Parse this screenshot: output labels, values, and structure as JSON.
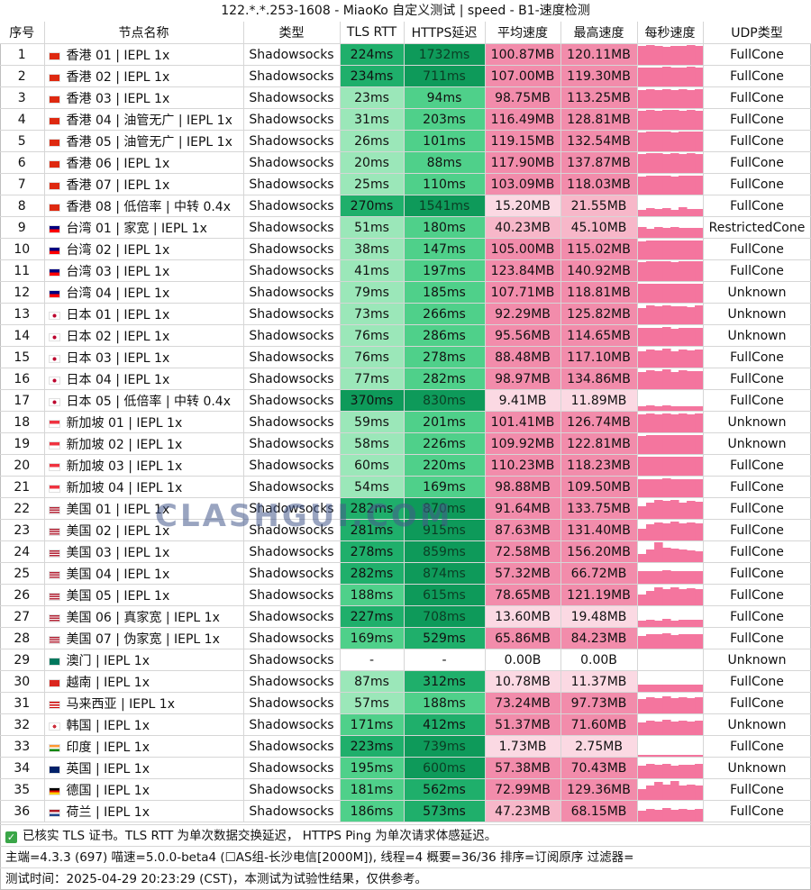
{
  "title": "122.*.*.253-1608 - MiaoKo 自定义测试 | speed - B1-速度检测",
  "headers": [
    "序号",
    "节点名称",
    "类型",
    "TLS RTT",
    "HTTPS延迟",
    "平均速度",
    "最高速度",
    "每秒速度",
    "UDP类型"
  ],
  "colors": {
    "rtt_fast": "#9be7b9",
    "rtt_mid": "#4fd08a",
    "rtt_slow": "#1faf6b",
    "rtt_bad": "#0e9a5a",
    "speed_fast": "#f28cab",
    "speed_mid": "#f7b7c9",
    "speed_low": "#fbd9e3",
    "speed_none": "#ffffff",
    "spark": "#f4759e"
  },
  "rows": [
    {
      "n": "1",
      "flag": "hk",
      "name": "香港 01 | IEPL 1x",
      "type": "Shadowsocks",
      "tls": "224ms",
      "https": "1732ms",
      "avg": "100.87MB",
      "max": "120.11MB",
      "udp": "FullCone",
      "tlsv": 224,
      "httpsv": 1732,
      "avgv": 100.87,
      "maxv": 120.11,
      "spark": [
        0.9,
        0.95,
        0.92,
        0.88,
        0.93,
        0.9,
        0.96,
        0.91
      ]
    },
    {
      "n": "2",
      "flag": "hk",
      "name": "香港 02 | IEPL 1x",
      "type": "Shadowsocks",
      "tls": "234ms",
      "https": "711ms",
      "avg": "107.00MB",
      "max": "119.30MB",
      "udp": "FullCone",
      "tlsv": 234,
      "httpsv": 711,
      "avgv": 107.0,
      "maxv": 119.3,
      "spark": [
        0.9,
        0.93,
        0.9,
        0.95,
        0.92,
        0.9,
        0.94,
        0.91
      ]
    },
    {
      "n": "3",
      "flag": "hk",
      "name": "香港 03 | IEPL 1x",
      "type": "Shadowsocks",
      "tls": "23ms",
      "https": "94ms",
      "avg": "98.75MB",
      "max": "113.25MB",
      "udp": "FullCone",
      "tlsv": 23,
      "httpsv": 94,
      "avgv": 98.75,
      "maxv": 113.25,
      "spark": [
        0.85,
        0.9,
        0.88,
        0.92,
        0.86,
        0.9,
        0.88,
        0.9
      ]
    },
    {
      "n": "4",
      "flag": "hk",
      "name": "香港 04 | 油管无广 | IEPL 1x",
      "type": "Shadowsocks",
      "tls": "31ms",
      "https": "203ms",
      "avg": "116.49MB",
      "max": "128.81MB",
      "udp": "FullCone",
      "tlsv": 31,
      "httpsv": 203,
      "avgv": 116.49,
      "maxv": 128.81,
      "spark": [
        0.92,
        0.95,
        0.93,
        0.96,
        0.94,
        0.92,
        0.95,
        0.93
      ]
    },
    {
      "n": "5",
      "flag": "hk",
      "name": "香港 05 | 油管无广 | IEPL 1x",
      "type": "Shadowsocks",
      "tls": "26ms",
      "https": "101ms",
      "avg": "119.15MB",
      "max": "132.54MB",
      "udp": "FullCone",
      "tlsv": 26,
      "httpsv": 101,
      "avgv": 119.15,
      "maxv": 132.54,
      "spark": [
        0.93,
        0.95,
        0.94,
        0.96,
        0.93,
        0.95,
        0.94,
        0.95
      ]
    },
    {
      "n": "6",
      "flag": "hk",
      "name": "香港 06 | IEPL 1x",
      "type": "Shadowsocks",
      "tls": "20ms",
      "https": "88ms",
      "avg": "117.90MB",
      "max": "137.87MB",
      "udp": "FullCone",
      "tlsv": 20,
      "httpsv": 88,
      "avgv": 117.9,
      "maxv": 137.87,
      "spark": [
        0.9,
        0.94,
        0.96,
        0.92,
        0.95,
        0.93,
        0.94,
        0.92
      ]
    },
    {
      "n": "7",
      "flag": "hk",
      "name": "香港 07 | IEPL 1x",
      "type": "Shadowsocks",
      "tls": "25ms",
      "https": "110ms",
      "avg": "103.09MB",
      "max": "118.03MB",
      "udp": "FullCone",
      "tlsv": 25,
      "httpsv": 110,
      "avgv": 103.09,
      "maxv": 118.03,
      "spark": [
        0.88,
        0.92,
        0.9,
        0.93,
        0.89,
        0.91,
        0.9,
        0.92
      ]
    },
    {
      "n": "8",
      "flag": "hk",
      "name": "香港 08 | 低倍率 | 中转 0.4x",
      "type": "Shadowsocks",
      "tls": "270ms",
      "https": "1541ms",
      "avg": "15.20MB",
      "max": "21.55MB",
      "udp": "FullCone",
      "tlsv": 270,
      "httpsv": 1541,
      "avgv": 15.2,
      "maxv": 21.55,
      "spark": [
        0.3,
        0.4,
        0.35,
        0.38,
        0.3,
        0.42,
        0.36,
        0.33
      ]
    },
    {
      "n": "9",
      "flag": "tw",
      "name": "台湾 01 | 家宽 | IEPL 1x",
      "type": "Shadowsocks",
      "tls": "51ms",
      "https": "180ms",
      "avg": "40.23MB",
      "max": "45.10MB",
      "udp": "RestrictedCone",
      "tlsv": 51,
      "httpsv": 180,
      "avgv": 40.23,
      "maxv": 45.1,
      "spark": [
        0.5,
        0.45,
        0.5,
        0.48,
        0.5,
        0.46,
        0.49,
        0.47
      ]
    },
    {
      "n": "10",
      "flag": "tw",
      "name": "台湾 02 | IEPL 1x",
      "type": "Shadowsocks",
      "tls": "38ms",
      "https": "147ms",
      "avg": "105.00MB",
      "max": "115.02MB",
      "udp": "FullCone",
      "tlsv": 38,
      "httpsv": 147,
      "avgv": 105.0,
      "maxv": 115.02,
      "spark": [
        0.88,
        0.92,
        0.9,
        0.93,
        0.91,
        0.9,
        0.92,
        0.9
      ]
    },
    {
      "n": "11",
      "flag": "tw",
      "name": "台湾 03 | IEPL 1x",
      "type": "Shadowsocks",
      "tls": "41ms",
      "https": "197ms",
      "avg": "123.84MB",
      "max": "140.92MB",
      "udp": "FullCone",
      "tlsv": 41,
      "httpsv": 197,
      "avgv": 123.84,
      "maxv": 140.92,
      "spark": [
        0.92,
        0.96,
        0.94,
        0.95,
        0.93,
        0.96,
        0.94,
        0.95
      ]
    },
    {
      "n": "12",
      "flag": "tw",
      "name": "台湾 04 | IEPL 1x",
      "type": "Shadowsocks",
      "tls": "79ms",
      "https": "185ms",
      "avg": "107.71MB",
      "max": "118.81MB",
      "udp": "Unknown",
      "tlsv": 79,
      "httpsv": 185,
      "avgv": 107.71,
      "maxv": 118.81,
      "spark": [
        0.9,
        0.92,
        0.91,
        0.93,
        0.9,
        0.92,
        0.91,
        0.93
      ]
    },
    {
      "n": "13",
      "flag": "jp",
      "name": "日本 01 | IEPL 1x",
      "type": "Shadowsocks",
      "tls": "73ms",
      "https": "266ms",
      "avg": "92.29MB",
      "max": "125.82MB",
      "udp": "Unknown",
      "tlsv": 73,
      "httpsv": 266,
      "avgv": 92.29,
      "maxv": 125.82,
      "spark": [
        0.8,
        0.9,
        0.85,
        0.92,
        0.86,
        0.88,
        0.84,
        0.9
      ]
    },
    {
      "n": "14",
      "flag": "jp",
      "name": "日本 02 | IEPL 1x",
      "type": "Shadowsocks",
      "tls": "76ms",
      "https": "286ms",
      "avg": "95.56MB",
      "max": "114.65MB",
      "udp": "Unknown",
      "tlsv": 76,
      "httpsv": 286,
      "avgv": 95.56,
      "maxv": 114.65,
      "spark": [
        0.85,
        0.88,
        0.86,
        0.9,
        0.84,
        0.89,
        0.87,
        0.88
      ]
    },
    {
      "n": "15",
      "flag": "jp",
      "name": "日本 03 | IEPL 1x",
      "type": "Shadowsocks",
      "tls": "76ms",
      "https": "278ms",
      "avg": "88.48MB",
      "max": "117.10MB",
      "udp": "FullCone",
      "tlsv": 76,
      "httpsv": 278,
      "avgv": 88.48,
      "maxv": 117.1,
      "spark": [
        0.78,
        0.86,
        0.82,
        0.9,
        0.8,
        0.85,
        0.83,
        0.86
      ]
    },
    {
      "n": "16",
      "flag": "jp",
      "name": "日本 04 | IEPL 1x",
      "type": "Shadowsocks",
      "tls": "77ms",
      "https": "282ms",
      "avg": "98.97MB",
      "max": "134.86MB",
      "udp": "FullCone",
      "tlsv": 77,
      "httpsv": 282,
      "avgv": 98.97,
      "maxv": 134.86,
      "spark": [
        0.82,
        0.92,
        0.86,
        0.94,
        0.84,
        0.9,
        0.85,
        0.88
      ]
    },
    {
      "n": "17",
      "flag": "jp",
      "name": "日本 05 | 低倍率 | 中转 0.4x",
      "type": "Shadowsocks",
      "tls": "370ms",
      "https": "830ms",
      "avg": "9.41MB",
      "max": "11.89MB",
      "udp": "FullCone",
      "tlsv": 370,
      "httpsv": 830,
      "avgv": 9.41,
      "maxv": 11.89,
      "spark": [
        0.2,
        0.25,
        0.22,
        0.24,
        0.2,
        0.23,
        0.21,
        0.22
      ]
    },
    {
      "n": "18",
      "flag": "sg",
      "name": "新加坡 01 | IEPL 1x",
      "type": "Shadowsocks",
      "tls": "59ms",
      "https": "201ms",
      "avg": "101.41MB",
      "max": "126.74MB",
      "udp": "Unknown",
      "tlsv": 59,
      "httpsv": 201,
      "avgv": 101.41,
      "maxv": 126.74,
      "spark": [
        0.85,
        0.9,
        0.88,
        0.93,
        0.86,
        0.9,
        0.88,
        0.91
      ]
    },
    {
      "n": "19",
      "flag": "sg",
      "name": "新加坡 02 | IEPL 1x",
      "type": "Shadowsocks",
      "tls": "58ms",
      "https": "226ms",
      "avg": "109.92MB",
      "max": "122.81MB",
      "udp": "Unknown",
      "tlsv": 58,
      "httpsv": 226,
      "avgv": 109.92,
      "maxv": 122.81,
      "spark": [
        0.88,
        0.92,
        0.9,
        0.93,
        0.9,
        0.92,
        0.91,
        0.92
      ]
    },
    {
      "n": "20",
      "flag": "sg",
      "name": "新加坡 03 | IEPL 1x",
      "type": "Shadowsocks",
      "tls": "60ms",
      "https": "220ms",
      "avg": "110.23MB",
      "max": "118.23MB",
      "udp": "FullCone",
      "tlsv": 60,
      "httpsv": 220,
      "avgv": 110.23,
      "maxv": 118.23,
      "spark": [
        0.9,
        0.92,
        0.91,
        0.93,
        0.9,
        0.92,
        0.91,
        0.92
      ]
    },
    {
      "n": "21",
      "flag": "sg",
      "name": "新加坡 04 | IEPL 1x",
      "type": "Shadowsocks",
      "tls": "54ms",
      "https": "169ms",
      "avg": "98.88MB",
      "max": "109.50MB",
      "udp": "FullCone",
      "tlsv": 54,
      "httpsv": 169,
      "avgv": 98.88,
      "maxv": 109.5,
      "spark": [
        0.86,
        0.89,
        0.87,
        0.9,
        0.86,
        0.88,
        0.87,
        0.89
      ]
    },
    {
      "n": "22",
      "flag": "us",
      "name": "美国 01 | IEPL 1x",
      "type": "Shadowsocks",
      "tls": "282ms",
      "https": "870ms",
      "avg": "91.64MB",
      "max": "133.75MB",
      "udp": "FullCone",
      "tlsv": 282,
      "httpsv": 870,
      "avgv": 91.64,
      "maxv": 133.75,
      "spark": [
        0.6,
        0.8,
        0.9,
        0.85,
        0.92,
        0.8,
        0.88,
        0.84
      ]
    },
    {
      "n": "23",
      "flag": "us",
      "name": "美国 02 | IEPL 1x",
      "type": "Shadowsocks",
      "tls": "281ms",
      "https": "915ms",
      "avg": "87.63MB",
      "max": "131.40MB",
      "udp": "FullCone",
      "tlsv": 281,
      "httpsv": 915,
      "avgv": 87.63,
      "maxv": 131.4,
      "spark": [
        0.55,
        0.8,
        0.88,
        0.82,
        0.9,
        0.84,
        0.86,
        0.82
      ]
    },
    {
      "n": "24",
      "flag": "us",
      "name": "美国 03 | IEPL 1x",
      "type": "Shadowsocks",
      "tls": "278ms",
      "https": "859ms",
      "avg": "72.58MB",
      "max": "156.20MB",
      "udp": "FullCone",
      "tlsv": 278,
      "httpsv": 859,
      "avgv": 72.58,
      "maxv": 156.2,
      "spark": [
        0.4,
        0.6,
        0.95,
        0.7,
        0.65,
        0.6,
        0.55,
        0.5
      ]
    },
    {
      "n": "25",
      "flag": "us",
      "name": "美国 04 | IEPL 1x",
      "type": "Shadowsocks",
      "tls": "282ms",
      "https": "874ms",
      "avg": "57.32MB",
      "max": "66.72MB",
      "udp": "FullCone",
      "tlsv": 282,
      "httpsv": 874,
      "avgv": 57.32,
      "maxv": 66.72,
      "spark": [
        0.6,
        0.62,
        0.6,
        0.64,
        0.6,
        0.62,
        0.61,
        0.62
      ]
    },
    {
      "n": "26",
      "flag": "us",
      "name": "美国 05 | IEPL 1x",
      "type": "Shadowsocks",
      "tls": "188ms",
      "https": "615ms",
      "avg": "78.65MB",
      "max": "121.19MB",
      "udp": "FullCone",
      "tlsv": 188,
      "httpsv": 615,
      "avgv": 78.65,
      "maxv": 121.19,
      "spark": [
        0.5,
        0.7,
        0.85,
        0.8,
        0.88,
        0.78,
        0.82,
        0.8
      ]
    },
    {
      "n": "27",
      "flag": "us",
      "name": "美国 06 | 真家宽 | IEPL 1x",
      "type": "Shadowsocks",
      "tls": "227ms",
      "https": "708ms",
      "avg": "13.60MB",
      "max": "19.48MB",
      "udp": "FullCone",
      "tlsv": 227,
      "httpsv": 708,
      "avgv": 13.6,
      "maxv": 19.48,
      "spark": [
        0.3,
        0.35,
        0.32,
        0.38,
        0.3,
        0.34,
        0.33,
        0.35
      ]
    },
    {
      "n": "28",
      "flag": "us",
      "name": "美国 07 | 伪家宽 | IEPL 1x",
      "type": "Shadowsocks",
      "tls": "169ms",
      "https": "529ms",
      "avg": "65.86MB",
      "max": "84.23MB",
      "udp": "FullCone",
      "tlsv": 169,
      "httpsv": 529,
      "avgv": 65.86,
      "maxv": 84.23,
      "spark": [
        0.6,
        0.7,
        0.68,
        0.72,
        0.66,
        0.7,
        0.68,
        0.7
      ]
    },
    {
      "n": "29",
      "flag": "mo",
      "name": "澳门 | IEPL 1x",
      "type": "Shadowsocks",
      "tls": "-",
      "https": "-",
      "avg": "0.00B",
      "max": "0.00B",
      "udp": "Unknown",
      "tlsv": -1,
      "httpsv": -1,
      "avgv": 0,
      "maxv": 0,
      "spark": []
    },
    {
      "n": "30",
      "flag": "vn",
      "name": "越南 | IEPL 1x",
      "type": "Shadowsocks",
      "tls": "87ms",
      "https": "312ms",
      "avg": "10.78MB",
      "max": "11.37MB",
      "udp": "FullCone",
      "tlsv": 87,
      "httpsv": 312,
      "avgv": 10.78,
      "maxv": 11.37,
      "spark": [
        0.35,
        0.36,
        0.35,
        0.36,
        0.35,
        0.36,
        0.35,
        0.36
      ]
    },
    {
      "n": "31",
      "flag": "my",
      "name": "马来西亚 | IEPL 1x",
      "type": "Shadowsocks",
      "tls": "57ms",
      "https": "188ms",
      "avg": "73.24MB",
      "max": "97.73MB",
      "udp": "FullCone",
      "tlsv": 57,
      "httpsv": 188,
      "avgv": 73.24,
      "maxv": 97.73,
      "spark": [
        0.7,
        0.8,
        0.76,
        0.82,
        0.74,
        0.78,
        0.76,
        0.8
      ]
    },
    {
      "n": "32",
      "flag": "kr",
      "name": "韩国 | IEPL 1x",
      "type": "Shadowsocks",
      "tls": "171ms",
      "https": "412ms",
      "avg": "51.37MB",
      "max": "71.60MB",
      "udp": "Unknown",
      "tlsv": 171,
      "httpsv": 412,
      "avgv": 51.37,
      "maxv": 71.6,
      "spark": [
        0.6,
        0.7,
        0.66,
        0.72,
        0.64,
        0.68,
        0.66,
        0.7
      ]
    },
    {
      "n": "33",
      "flag": "in",
      "name": "印度 | IEPL 1x",
      "type": "Shadowsocks",
      "tls": "223ms",
      "https": "739ms",
      "avg": "1.73MB",
      "max": "2.75MB",
      "udp": "FullCone",
      "tlsv": 223,
      "httpsv": 739,
      "avgv": 1.73,
      "maxv": 2.75,
      "spark": [
        0.08,
        0.1,
        0.09,
        0.1,
        0.08,
        0.1,
        0.09,
        0.1
      ]
    },
    {
      "n": "34",
      "flag": "gb",
      "name": "英国 | IEPL 1x",
      "type": "Shadowsocks",
      "tls": "195ms",
      "https": "600ms",
      "avg": "57.38MB",
      "max": "70.43MB",
      "udp": "Unknown",
      "tlsv": 195,
      "httpsv": 600,
      "avgv": 57.38,
      "maxv": 70.43,
      "spark": [
        0.6,
        0.68,
        0.65,
        0.7,
        0.62,
        0.66,
        0.64,
        0.68
      ]
    },
    {
      "n": "35",
      "flag": "de",
      "name": "德国 | IEPL 1x",
      "type": "Shadowsocks",
      "tls": "181ms",
      "https": "562ms",
      "avg": "72.99MB",
      "max": "129.36MB",
      "udp": "FullCone",
      "tlsv": 181,
      "httpsv": 562,
      "avgv": 72.99,
      "maxv": 129.36,
      "spark": [
        0.5,
        0.7,
        0.85,
        0.72,
        0.9,
        0.7,
        0.75,
        0.7
      ]
    },
    {
      "n": "36",
      "flag": "nl",
      "name": "荷兰 | IEPL 1x",
      "type": "Shadowsocks",
      "tls": "186ms",
      "https": "573ms",
      "avg": "47.23MB",
      "max": "68.15MB",
      "udp": "FullCone",
      "tlsv": 186,
      "httpsv": 573,
      "avgv": 47.23,
      "maxv": 68.15,
      "spark": [
        0.5,
        0.6,
        0.58,
        0.65,
        0.55,
        0.6,
        0.58,
        0.62
      ]
    }
  ],
  "footer": {
    "line1": "已核实 TLS 证书。TLS RTT 为单次数据交换延迟， HTTPS Ping 为单次请求体感延迟。",
    "line2": "主端=4.3.3 (697) 喵速=5.0.0-beta4 (☐AS组-长沙电信[2000M]), 线程=4 概要=36/36 排序=订阅原序 过滤器=",
    "line3": "测试时间：2025-04-29 20:23:29 (CST)，本测试为试验性结果，仅供参考。"
  },
  "watermark": "CLASHGUI.COM"
}
